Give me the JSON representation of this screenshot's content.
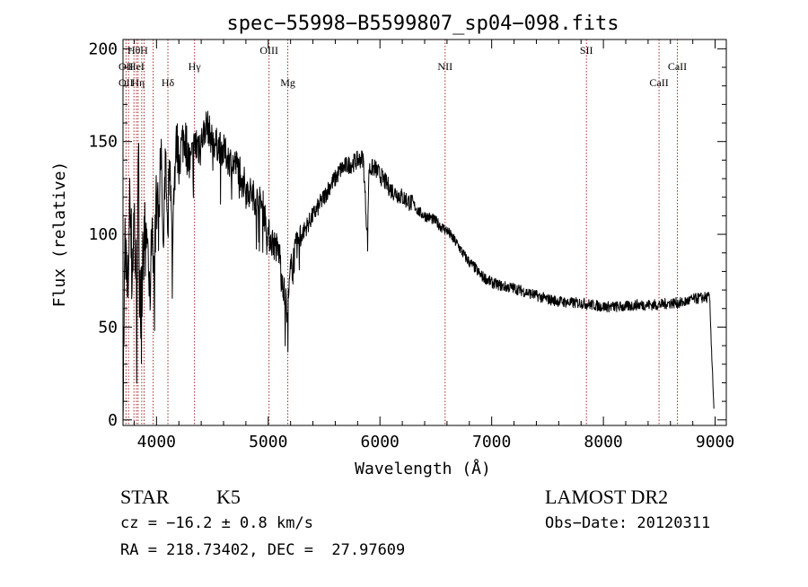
{
  "chart_data": {
    "type": "line",
    "title": "spec−55998−B5599807_sp04−098.fits",
    "xlabel": "Wavelength (Å)",
    "ylabel": "Flux (relative)",
    "xlim": [
      3700,
      9100
    ],
    "ylim": [
      -3,
      205
    ],
    "x_ticks": [
      4000,
      5000,
      6000,
      7000,
      8000,
      9000
    ],
    "x_tick_labels": [
      "4000",
      "5000",
      "6000",
      "7000",
      "8000",
      "9000"
    ],
    "y_ticks": [
      0,
      50,
      100,
      150,
      200
    ],
    "y_tick_labels": [
      "0",
      "50",
      "100",
      "150",
      "200"
    ],
    "grid": false,
    "line_color": "#000000",
    "marker_color": "#a52a2a",
    "spectrum": {
      "x": [
        3700,
        3720,
        3740,
        3760,
        3780,
        3800,
        3820,
        3840,
        3860,
        3880,
        3900,
        3920,
        3940,
        3960,
        3980,
        4000,
        4020,
        4040,
        4060,
        4080,
        4100,
        4120,
        4140,
        4160,
        4180,
        4200,
        4250,
        4300,
        4350,
        4400,
        4450,
        4500,
        4550,
        4600,
        4650,
        4700,
        4750,
        4800,
        4850,
        4900,
        4950,
        5000,
        5050,
        5100,
        5150,
        5175,
        5200,
        5250,
        5300,
        5350,
        5400,
        5450,
        5500,
        5550,
        5600,
        5650,
        5700,
        5750,
        5800,
        5850,
        5890,
        5900,
        5950,
        6000,
        6050,
        6100,
        6150,
        6200,
        6250,
        6300,
        6350,
        6400,
        6450,
        6500,
        6550,
        6600,
        6650,
        6700,
        6750,
        6800,
        6850,
        6900,
        6950,
        7000,
        7100,
        7200,
        7300,
        7400,
        7500,
        7600,
        7700,
        7800,
        7900,
        8000,
        8100,
        8200,
        8300,
        8400,
        8500,
        8600,
        8700,
        8800,
        8900,
        8950,
        8990
      ],
      "y": [
        10,
        100,
        60,
        120,
        80,
        110,
        70,
        130,
        55,
        105,
        90,
        100,
        60,
        110,
        75,
        135,
        100,
        150,
        85,
        140,
        110,
        145,
        90,
        130,
        150,
        140,
        155,
        135,
        148,
        150,
        160,
        150,
        148,
        145,
        140,
        138,
        135,
        125,
        122,
        118,
        116,
        100,
        95,
        90,
        65,
        60,
        80,
        92,
        100,
        105,
        110,
        115,
        120,
        126,
        130,
        135,
        137,
        138,
        140,
        141,
        95,
        135,
        136,
        132,
        128,
        124,
        122,
        120,
        118,
        116,
        112,
        110,
        109,
        107,
        104,
        102,
        98,
        94,
        89,
        85,
        82,
        78,
        76,
        74,
        72,
        71,
        69,
        67,
        65,
        64,
        63,
        63,
        62,
        61,
        61,
        61,
        62,
        62,
        62,
        63,
        63,
        65,
        66,
        66,
        5
      ]
    },
    "lines": [
      {
        "label": "Hθ",
        "x": 3798,
        "row": 1
      },
      {
        "label": "H",
        "x": 3889,
        "row": 1
      },
      {
        "label": "OII",
        "x": 3727,
        "row": 2
      },
      {
        "label": "HeI",
        "x": 3820,
        "row": 2
      },
      {
        "label": "Hγ",
        "x": 4340,
        "row": 2
      },
      {
        "label": "OIII",
        "x": 5007,
        "row": 1
      },
      {
        "label": "Mg",
        "x": 5175,
        "row": 3
      },
      {
        "label": "NII",
        "x": 6583,
        "row": 2
      },
      {
        "label": "SII",
        "x": 7848,
        "row": 1
      },
      {
        "label": "CaII",
        "x": 8662,
        "row": 2
      },
      {
        "label": "OII",
        "x": 3727,
        "row": 3
      },
      {
        "label": "Hη",
        "x": 3835,
        "row": 3
      },
      {
        "label": "Hδ",
        "x": 4102,
        "row": 3
      },
      {
        "label": "CaII",
        "x": 8498,
        "row": 3
      }
    ],
    "extra_markers": [
      3750,
      3868,
      3970
    ]
  },
  "info": {
    "object_class": "STAR",
    "subclass": "K5",
    "survey": "LAMOST DR2",
    "cz": "cz = −16.2 ± 0.8 km/s",
    "obs_date": "Obs−Date: 20120311",
    "coords": "RA = 218.73402, DEC =  27.97609"
  }
}
